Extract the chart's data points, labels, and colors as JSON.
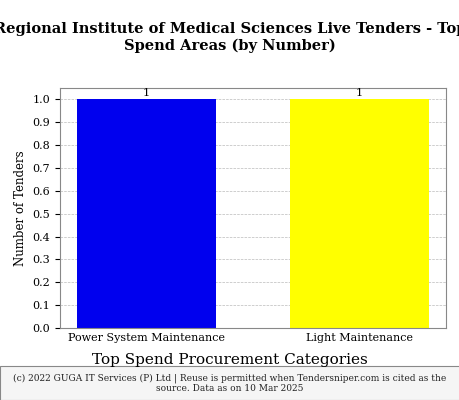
{
  "title": "Regional Institute of Medical Sciences Live Tenders - Top\nSpend Areas (by Number)",
  "categories": [
    "Power System Maintenance",
    "Light Maintenance"
  ],
  "values": [
    1,
    1
  ],
  "bar_colors": [
    "#0000EE",
    "#FFFF00"
  ],
  "xlabel": "Top Spend Procurement Categories",
  "ylabel": "Number of Tenders",
  "ylim": [
    0.0,
    1.05
  ],
  "yticks": [
    0.0,
    0.1,
    0.2,
    0.3,
    0.4,
    0.5,
    0.6,
    0.7,
    0.8,
    0.9,
    1.0
  ],
  "bar_labels": [
    "1",
    "1"
  ],
  "footnote": "(c) 2022 GUGA IT Services (P) Ltd | Reuse is permitted when Tendersniper.com is cited as the\nsource. Data as on 10 Mar 2025",
  "background_color": "#ffffff",
  "title_fontsize": 10.5,
  "xlabel_fontsize": 11,
  "ylabel_fontsize": 8.5,
  "tick_fontsize": 8,
  "bar_label_fontsize": 8,
  "footnote_fontsize": 6.5,
  "bar_width": 0.65
}
